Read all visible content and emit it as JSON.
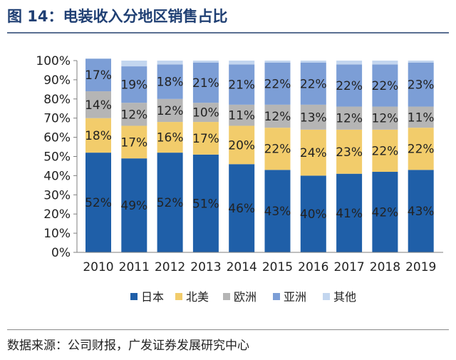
{
  "figure": {
    "title": "图 14：电装收入分地区销售占比",
    "source": "数据来源：公司财报，广发证券发展研究中心"
  },
  "chart_data": {
    "type": "bar",
    "stacked": true,
    "title": "电装收入分地区销售占比",
    "categories": [
      "2010",
      "2011",
      "2012",
      "2013",
      "2014",
      "2015",
      "2016",
      "2017",
      "2018",
      "2019"
    ],
    "series": [
      {
        "name": "日本",
        "color": "#1f5fa8",
        "values": [
          52,
          49,
          52,
          51,
          46,
          43,
          40,
          41,
          42,
          43
        ]
      },
      {
        "name": "北美",
        "color": "#f2cc6b",
        "values": [
          18,
          17,
          16,
          17,
          20,
          22,
          24,
          23,
          22,
          22
        ]
      },
      {
        "name": "欧洲",
        "color": "#b5b5b5",
        "values": [
          14,
          12,
          12,
          10,
          11,
          12,
          13,
          12,
          12,
          11
        ]
      },
      {
        "name": "亚洲",
        "color": "#7c9ed6",
        "values": [
          17,
          19,
          18,
          21,
          21,
          22,
          22,
          22,
          22,
          23
        ]
      },
      {
        "name": "其他",
        "color": "#c3d6ef",
        "values": [
          0,
          3,
          2,
          1,
          2,
          1,
          1,
          2,
          2,
          1
        ]
      }
    ],
    "data_labels": [
      [
        "52%",
        "49%",
        "52%",
        "51%",
        "46%",
        "43%",
        "40%",
        "41%",
        "42%",
        "43%"
      ],
      [
        "18%",
        "17%",
        "16%",
        "17%",
        "20%",
        "22%",
        "24%",
        "23%",
        "22%",
        "22%"
      ],
      [
        "14%",
        "12%",
        "12%",
        "10%",
        "11%",
        "12%",
        "13%",
        "12%",
        "12%",
        "11%"
      ],
      [
        "17%",
        "19%",
        "18%",
        "21%",
        "21%",
        "22%",
        "22%",
        "22%",
        "22%",
        "23%"
      ],
      [
        "",
        "",
        "",
        "",
        "",
        "",
        "",
        "",
        "",
        ""
      ]
    ],
    "y_ticks": [
      "0%",
      "10%",
      "20%",
      "30%",
      "40%",
      "50%",
      "60%",
      "70%",
      "80%",
      "90%",
      "100%"
    ],
    "ylim": [
      0,
      100
    ],
    "legend_position": "bottom"
  }
}
